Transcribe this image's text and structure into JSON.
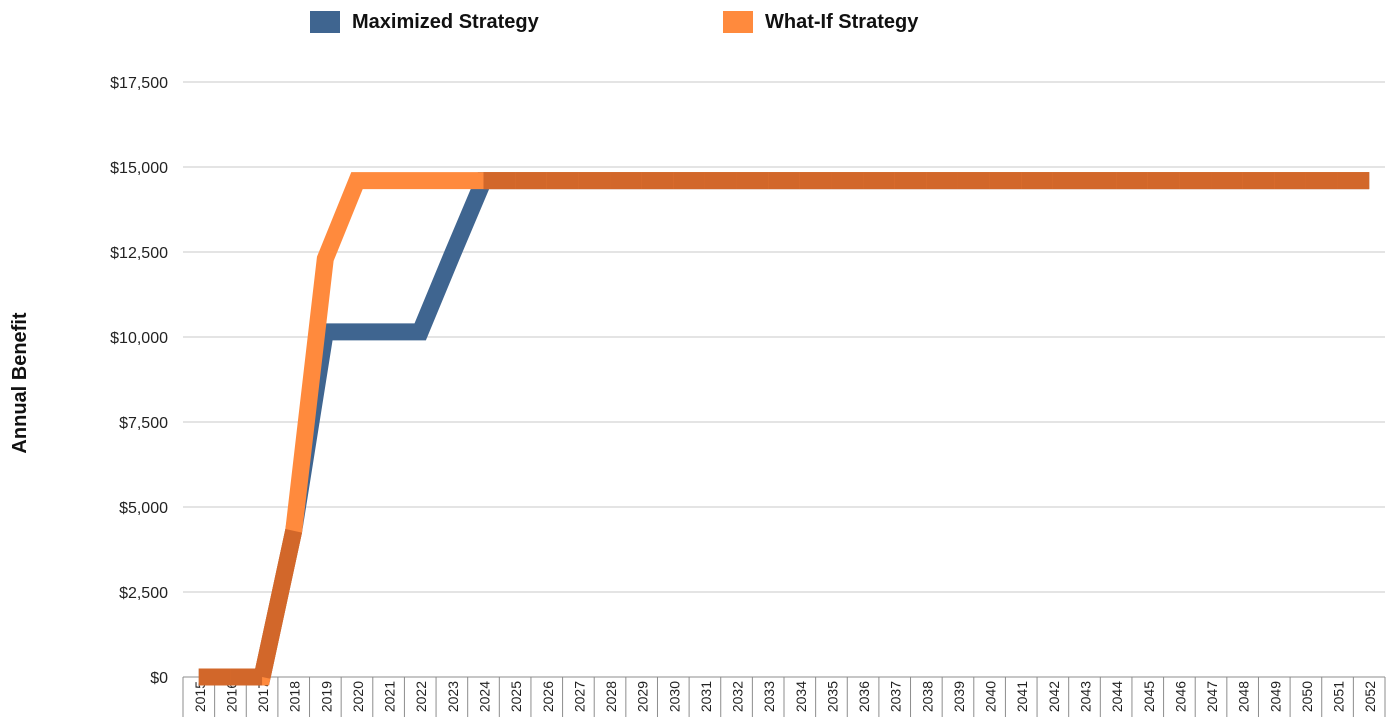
{
  "chart_data": {
    "type": "line",
    "title": "",
    "xlabel": "",
    "ylabel": "Annual Benefit",
    "ylim": [
      0,
      17500
    ],
    "yticks": [
      0,
      2500,
      5000,
      7500,
      10000,
      12500,
      15000,
      17500
    ],
    "ytick_labels": [
      "$0",
      "$2,500",
      "$5,000",
      "$7,500",
      "$10,000",
      "$12,500",
      "$15,000",
      "$17,500"
    ],
    "grid": true,
    "legend_position": "top",
    "categories": [
      "2015",
      "2016",
      "2017",
      "2018",
      "2019",
      "2020",
      "2021",
      "2022",
      "2023",
      "2024",
      "2025",
      "2026",
      "2027",
      "2028",
      "2029",
      "2030",
      "2031",
      "2032",
      "2033",
      "2034",
      "2035",
      "2036",
      "2037",
      "2038",
      "2039",
      "2040",
      "2041",
      "2042",
      "2043",
      "2044",
      "2045",
      "2046",
      "2047",
      "2048",
      "2049",
      "2050",
      "2051",
      "2052"
    ],
    "series": [
      {
        "name": "Maximized Strategy",
        "color": "#3f6590",
        "values": [
          0,
          0,
          0,
          4300,
          10150,
          10150,
          10150,
          10150,
          12400,
          14600,
          14600,
          14600,
          14600,
          14600,
          14600,
          14600,
          14600,
          14600,
          14600,
          14600,
          14600,
          14600,
          14600,
          14600,
          14600,
          14600,
          14600,
          14600,
          14600,
          14600,
          14600,
          14600,
          14600,
          14600,
          14600,
          14600,
          14600,
          14600
        ]
      },
      {
        "name": "What-If Strategy",
        "color": "#ff8a3d",
        "values": [
          0,
          0,
          0,
          4300,
          12300,
          14600,
          14600,
          14600,
          14600,
          14600,
          14600,
          14600,
          14600,
          14600,
          14600,
          14600,
          14600,
          14600,
          14600,
          14600,
          14600,
          14600,
          14600,
          14600,
          14600,
          14600,
          14600,
          14600,
          14600,
          14600,
          14600,
          14600,
          14600,
          14600,
          14600,
          14600,
          14600,
          14600
        ]
      }
    ],
    "overlap_color": "#d2672a"
  }
}
